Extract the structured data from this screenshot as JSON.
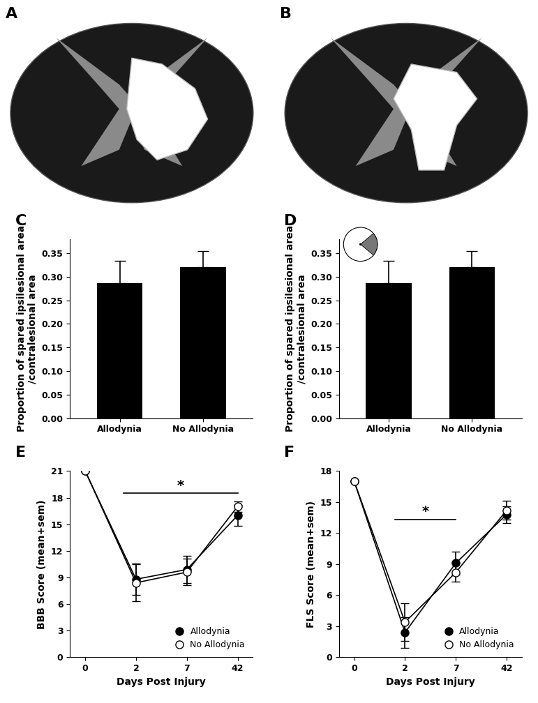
{
  "chart_data": [
    {
      "type": "image",
      "title": "A"
    },
    {
      "type": "image",
      "title": "B"
    },
    {
      "type": "bar",
      "title": "C",
      "categories": [
        "Allodynia",
        "No Allodynia"
      ],
      "values": [
        0.287,
        0.32
      ],
      "errors": [
        0.047,
        0.034
      ],
      "color": "#000000",
      "ylabel": "Proportion of spared ipsilesional area\n/contralesional area",
      "ylim": [
        0,
        0.38
      ],
      "yticks": [
        {
          "value": 0,
          "label": "0.00"
        },
        {
          "value": 0.05,
          "label": "0.05"
        },
        {
          "value": 0.1,
          "label": "0.10"
        },
        {
          "value": 0.15,
          "label": "0.15"
        },
        {
          "value": 0.2,
          "label": "0.20"
        },
        {
          "value": 0.25,
          "label": "0.25"
        },
        {
          "value": 0.3,
          "label": "0.30"
        },
        {
          "value": 0.35,
          "label": "0.35"
        }
      ]
    },
    {
      "type": "bar",
      "title": "D",
      "categories": [
        "Allodynia",
        "No Allodynia"
      ],
      "values": [
        0.287,
        0.32
      ],
      "errors": [
        0.047,
        0.034
      ],
      "color": "#000000",
      "ylabel": "Proportion of spared ipsilesional area\n/contralesional area",
      "ylim": [
        0,
        0.38
      ],
      "yticks": [
        {
          "value": 0,
          "label": "0.00"
        },
        {
          "value": 0.05,
          "label": "0.05"
        },
        {
          "value": 0.1,
          "label": "0.10"
        },
        {
          "value": 0.15,
          "label": "0.15"
        },
        {
          "value": 0.2,
          "label": "0.20"
        },
        {
          "value": 0.25,
          "label": "0.25"
        },
        {
          "value": 0.3,
          "label": "0.30"
        },
        {
          "value": 0.35,
          "label": "0.35"
        }
      ]
    },
    {
      "type": "line",
      "title": "E",
      "categories": [
        "0",
        "2",
        "7",
        "42"
      ],
      "xlabel": "Days Post Injury",
      "ylabel": "BBB Score (mean+sem)",
      "ylim": [
        0,
        21
      ],
      "yticks": [
        0,
        3,
        6,
        9,
        12,
        15,
        18,
        21
      ],
      "legend": "lower right",
      "annotations": [
        "*"
      ],
      "series": [
        {
          "name": "Allodynia",
          "color": "#000000",
          "marker": "o",
          "values": [
            21,
            8.8,
            9.9,
            16.0
          ],
          "errors": [
            0,
            1.8,
            1.5,
            1.2
          ]
        },
        {
          "name": "No Allodynia",
          "color": "#ffffff",
          "marker": "o",
          "values": [
            21,
            8.4,
            9.6,
            17.0
          ],
          "errors": [
            0,
            2.1,
            1.5,
            0.6
          ]
        }
      ]
    },
    {
      "type": "line",
      "title": "F",
      "categories": [
        "0",
        "2",
        "7",
        "42"
      ],
      "xlabel": "Days Post Injury",
      "ylabel": "FLS Score (mean+sem)",
      "ylim": [
        0,
        18
      ],
      "yticks": [
        0,
        3,
        6,
        9,
        12,
        15,
        18
      ],
      "legend": "lower right",
      "annotations": [
        "*"
      ],
      "series": [
        {
          "name": "Allodynia",
          "color": "#000000",
          "marker": "o",
          "values": [
            17,
            2.4,
            9.1,
            13.8
          ],
          "errors": [
            0,
            1.5,
            1.1,
            0.8
          ]
        },
        {
          "name": "No Allodynia",
          "color": "#ffffff",
          "marker": "o",
          "values": [
            17,
            3.4,
            8.2,
            14.2
          ],
          "errors": [
            0,
            1.8,
            0.9,
            0.9
          ]
        }
      ]
    }
  ]
}
